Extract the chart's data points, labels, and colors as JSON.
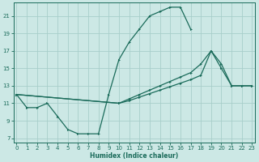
{
  "xlabel": "Humidex (Indice chaleur)",
  "bg_color": "#cce8e5",
  "grid_color": "#a8ceca",
  "line_color": "#1a6b5a",
  "xlim": [
    -0.3,
    23.3
  ],
  "ylim": [
    6.5,
    22.5
  ],
  "xticks": [
    0,
    1,
    2,
    3,
    4,
    5,
    6,
    7,
    8,
    9,
    10,
    11,
    12,
    13,
    14,
    15,
    16,
    17,
    18,
    19,
    20,
    21,
    22,
    23
  ],
  "yticks": [
    7,
    9,
    11,
    13,
    15,
    17,
    19,
    21
  ],
  "curve1_x": [
    0,
    1,
    2,
    3,
    4,
    5,
    6,
    7,
    8,
    9,
    10,
    11,
    12,
    13,
    14,
    15,
    16,
    17
  ],
  "curve1_y": [
    12.0,
    10.5,
    10.5,
    11.0,
    9.5,
    8.0,
    7.5,
    7.5,
    7.5,
    12.0,
    16.0,
    18.0,
    19.5,
    21.0,
    21.5,
    22.0,
    22.0,
    19.5
  ],
  "curve2_x": [
    0,
    10,
    11,
    12,
    13,
    14,
    15,
    16,
    17,
    18,
    19,
    20,
    21,
    22,
    23
  ],
  "curve2_y": [
    12.0,
    11.0,
    11.5,
    12.0,
    12.5,
    13.0,
    13.5,
    14.0,
    14.5,
    15.5,
    17.0,
    15.5,
    13.0,
    13.0,
    13.0
  ],
  "curve3_x": [
    0,
    10,
    11,
    12,
    13,
    14,
    15,
    16,
    17,
    18,
    19,
    20,
    21,
    22,
    23
  ],
  "curve3_y": [
    12.0,
    11.0,
    11.3,
    11.7,
    12.1,
    12.5,
    12.9,
    13.3,
    13.7,
    14.2,
    17.0,
    15.0,
    13.0,
    13.0,
    13.0
  ]
}
